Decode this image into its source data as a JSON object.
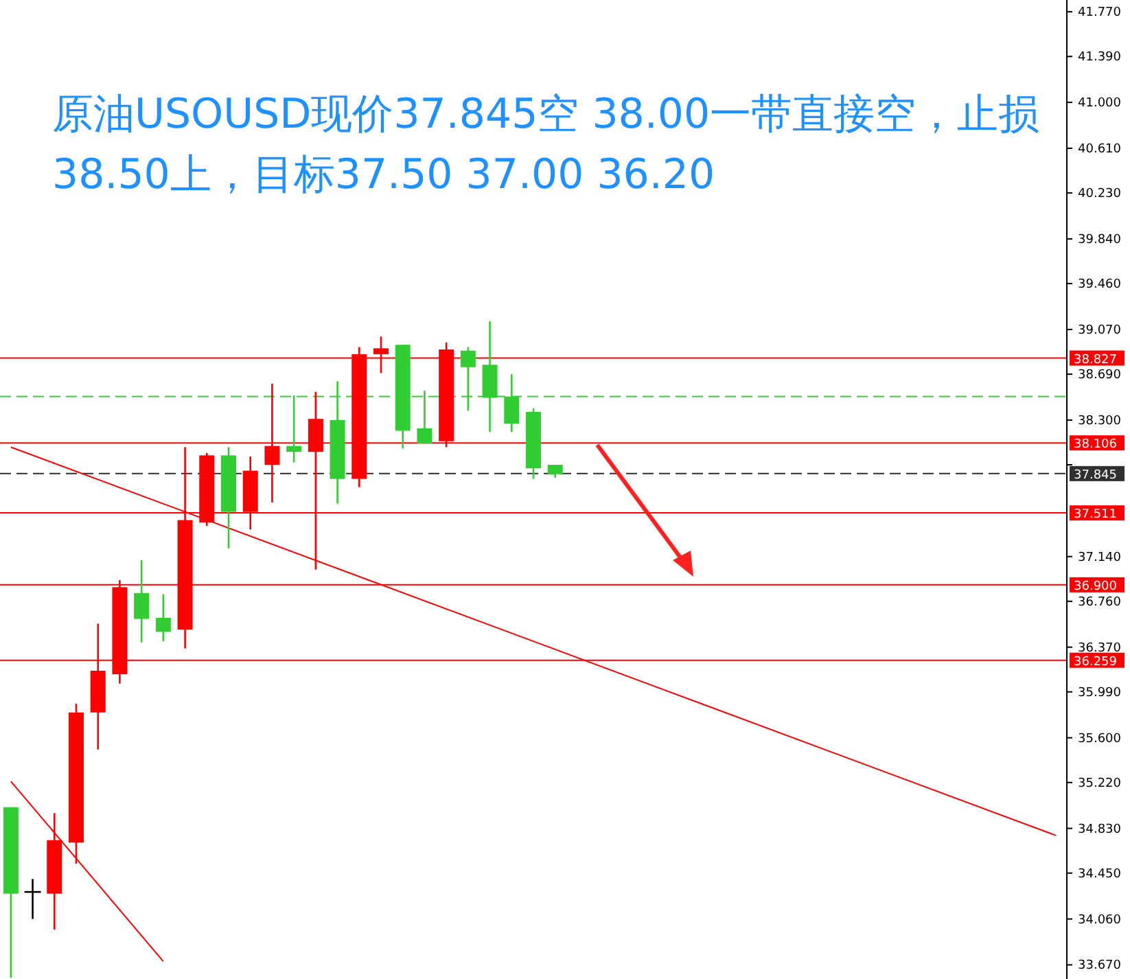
{
  "chart_data": {
    "type": "candlestick",
    "title": "原油USOUSD现价37.845空  38.00一带直接空，止损38.50上，目标37.50   37.00  36.20",
    "categories": [
      null,
      null,
      null,
      null,
      null,
      null,
      null,
      null,
      null,
      null,
      null,
      null,
      null,
      null,
      null,
      null,
      null,
      null,
      null,
      null,
      null,
      null,
      null,
      null,
      null,
      null,
      null,
      null,
      null,
      null,
      null,
      null,
      null,
      null,
      null,
      null,
      null,
      null,
      null,
      null,
      null,
      null,
      null,
      null,
      null,
      null,
      null,
      null,
      null
    ],
    "ohlc": [
      [
        35.01,
        35.01,
        33.56,
        34.275
      ],
      [
        34.29,
        34.4,
        34.06,
        34.29
      ],
      [
        34.275,
        34.96,
        33.97,
        34.73
      ],
      [
        34.71,
        35.89,
        34.53,
        35.815
      ],
      [
        35.815,
        36.57,
        35.5,
        36.17
      ],
      [
        36.14,
        36.94,
        36.06,
        36.88
      ],
      [
        36.83,
        37.11,
        36.41,
        36.61
      ],
      [
        36.62,
        36.82,
        36.42,
        36.5
      ],
      [
        36.52,
        38.07,
        36.36,
        37.45
      ],
      [
        37.43,
        38.02,
        37.4,
        38.0
      ],
      [
        38.0,
        38.07,
        37.21,
        37.52
      ],
      [
        37.52,
        37.99,
        37.37,
        37.87
      ],
      [
        37.92,
        38.61,
        37.6,
        38.08
      ],
      [
        38.08,
        38.51,
        37.94,
        38.03
      ],
      [
        38.03,
        38.54,
        37.03,
        38.31
      ],
      [
        38.3,
        38.63,
        37.59,
        37.8
      ],
      [
        37.8,
        38.92,
        37.73,
        38.86
      ],
      [
        38.86,
        39.01,
        38.7,
        38.91
      ],
      [
        38.94,
        38.94,
        38.06,
        38.21
      ],
      [
        38.23,
        38.55,
        38.1,
        38.1
      ],
      [
        38.12,
        38.96,
        38.07,
        38.9
      ],
      [
        38.89,
        38.92,
        38.38,
        38.75
      ],
      [
        38.77,
        39.14,
        38.2,
        38.49
      ],
      [
        38.5,
        38.69,
        38.2,
        38.27
      ],
      [
        38.37,
        38.4,
        37.8,
        37.89
      ],
      [
        37.92,
        37.92,
        37.81,
        37.84
      ],
      null,
      null,
      null,
      null,
      null,
      null,
      null,
      null,
      null,
      null,
      null,
      null,
      null,
      null,
      null,
      null,
      null,
      null,
      null,
      null,
      null,
      null,
      null
    ],
    "colors": [
      "#32cd32",
      "#000000",
      "#ff0000",
      "#ff0000",
      "#ff0000",
      "#ff0000",
      "#32cd32",
      "#32cd32",
      "#ff0000",
      "#ff0000",
      "#32cd32",
      "#ff0000",
      "#ff0000",
      "#32cd32",
      "#ff0000",
      "#32cd32",
      "#ff0000",
      "#ff0000",
      "#32cd32",
      "#32cd32",
      "#ff0000",
      "#32cd32",
      "#32cd32",
      "#32cd32",
      "#32cd32",
      "#32cd32",
      null,
      null,
      null,
      null,
      null,
      null,
      null,
      null,
      null,
      null,
      null,
      null,
      null,
      null,
      null,
      null,
      null,
      null,
      null,
      null,
      null,
      null,
      null
    ],
    "series": [
      {
        "type": "line",
        "color": "#ff0000",
        "values": [
          38.07,
          null,
          null,
          null,
          null,
          null,
          null,
          null,
          null,
          null,
          null,
          null,
          null,
          null,
          null,
          null,
          null,
          null,
          null,
          null,
          null,
          null,
          null,
          null,
          null,
          null,
          null,
          null,
          null,
          null,
          null,
          null,
          null,
          null,
          null,
          null,
          null,
          null,
          null,
          null,
          null,
          null,
          null,
          null,
          null,
          null,
          null,
          null,
          34.77
        ]
      },
      {
        "type": "line",
        "color": "#ff0000",
        "values": [
          35.23,
          null,
          null,
          null,
          null,
          null,
          null,
          33.7,
          null,
          null,
          null,
          null,
          null,
          null,
          null,
          null,
          null,
          null,
          null,
          null,
          null,
          null,
          null,
          null,
          null,
          null,
          null,
          null,
          null,
          null,
          null,
          null,
          null,
          null,
          null,
          null,
          null,
          null,
          null,
          null,
          null,
          null,
          null,
          null,
          null,
          null,
          null,
          null,
          null
        ]
      }
    ],
    "ylim": [
      33.55,
      41.87
    ],
    "yticks": [
      {
        "value": 41.77,
        "label": "41.770"
      },
      {
        "value": 41.39,
        "label": "41.390"
      },
      {
        "value": 41.0,
        "label": "41.000"
      },
      {
        "value": 40.61,
        "label": "40.610"
      },
      {
        "value": 40.23,
        "label": "40.230"
      },
      {
        "value": 39.84,
        "label": "39.840"
      },
      {
        "value": 39.46,
        "label": "39.460"
      },
      {
        "value": 39.07,
        "label": "39.070"
      },
      {
        "value": 38.69,
        "label": "38.690"
      },
      {
        "value": 38.3,
        "label": "38.300"
      },
      {
        "value": 37.92,
        "label": null
      },
      {
        "value": 37.14,
        "label": "37.140"
      },
      {
        "value": 36.76,
        "label": "36.760"
      },
      {
        "value": 36.37,
        "label": "36.370"
      },
      {
        "value": 35.99,
        "label": "35.990"
      },
      {
        "value": 35.6,
        "label": "35.600"
      },
      {
        "value": 35.22,
        "label": "35.220"
      },
      {
        "value": 34.83,
        "label": "34.830"
      },
      {
        "value": 34.45,
        "label": "34.450"
      },
      {
        "value": 34.06,
        "label": "34.060"
      },
      {
        "value": 33.67,
        "label": "33.670"
      }
    ],
    "ref_lines": [
      {
        "axis": "y",
        "value": 38.827,
        "label": "38.827",
        "color": "#ff0000",
        "line_style": "solid"
      },
      {
        "axis": "y",
        "value": 38.5,
        "color": "#32cd32",
        "line_style": "dashed"
      },
      {
        "axis": "y",
        "value": 38.106,
        "label": "38.106",
        "color": "#ff0000",
        "line_style": "solid"
      },
      {
        "axis": "y",
        "value": 37.845,
        "label": "37.845",
        "color": "#303030",
        "line_style": "dashed"
      },
      {
        "axis": "y",
        "value": 37.511,
        "label": "37.511",
        "color": "#ff0000",
        "line_style": "solid"
      },
      {
        "axis": "y",
        "value": 36.9,
        "label": "36.900",
        "color": "#ff0000",
        "line_style": "solid"
      },
      {
        "axis": "y",
        "value": 36.259,
        "label": "36.259",
        "color": "#ff0000",
        "line_style": "solid"
      }
    ],
    "grid": false
  }
}
